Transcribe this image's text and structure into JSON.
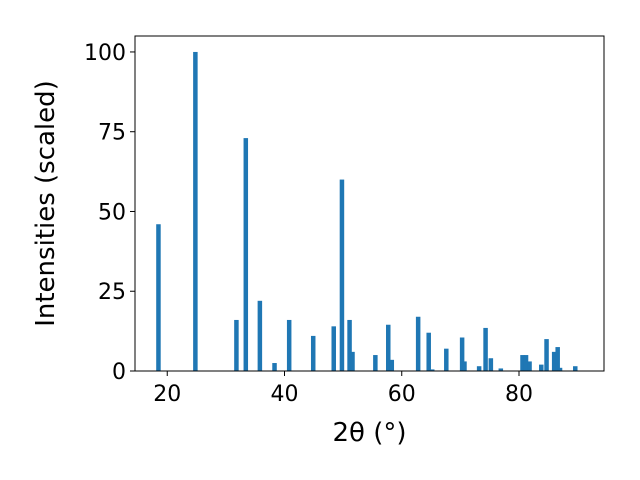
{
  "chart_data": {
    "type": "bar",
    "title": "",
    "xlabel": "2θ (°)",
    "ylabel": "Intensities (scaled)",
    "xlim": [
      14.5,
      94.5
    ],
    "ylim": [
      0,
      105
    ],
    "x_ticks": [
      20,
      40,
      60,
      80
    ],
    "y_ticks": [
      0,
      25,
      50,
      75,
      100
    ],
    "grid": false,
    "legend": "none",
    "bar_color": "#1f77b4",
    "x": [
      18.5,
      24.8,
      31.8,
      33.4,
      35.8,
      38.3,
      40.8,
      44.9,
      48.4,
      49.8,
      51.1,
      51.6,
      55.5,
      57.7,
      58.3,
      62.8,
      64.6,
      65.2,
      67.6,
      70.3,
      70.7,
      73.2,
      74.3,
      75.2,
      76.9,
      80.6,
      81.2,
      81.8,
      83.8,
      84.7,
      86.0,
      86.6,
      87.0,
      89.6
    ],
    "values": [
      46,
      100,
      16,
      73,
      22,
      2.5,
      16,
      11,
      14,
      60,
      16,
      6,
      5,
      14.5,
      3.5,
      17,
      12,
      0.5,
      7,
      10.5,
      3,
      1.5,
      13.5,
      4,
      0.8,
      5,
      5,
      3,
      2,
      10,
      6,
      7.5,
      1,
      1.5
    ]
  }
}
